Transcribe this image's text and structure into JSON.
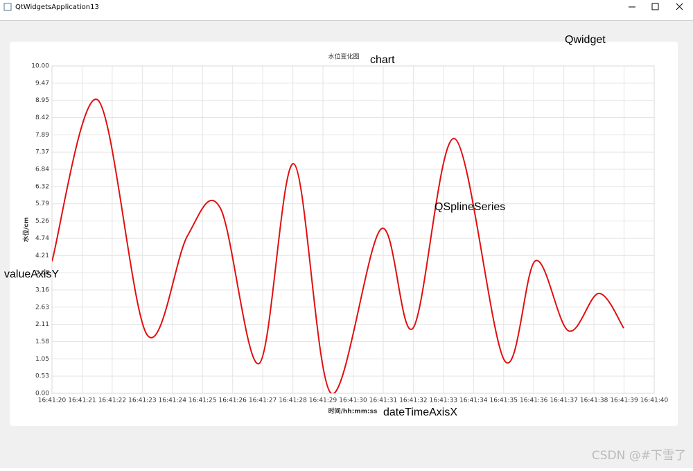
{
  "window": {
    "title": "QtWidgetsApplication13"
  },
  "annotations": [
    "Qwidget",
    "chart",
    "QSplineSeries",
    "valueAxisY",
    "dateTimeAxisX"
  ],
  "watermark": "CSDN @#下雪了",
  "chart_data": {
    "type": "spline",
    "title": "水位变化图",
    "x_label": "时间/hh:mm:ss",
    "y_label": "水位/cm",
    "x": [
      "16:41:20.00",
      "16:41:21.52",
      "16:41:23.15",
      "16:41:24.50",
      "16:41:25.59",
      "16:41:26.88",
      "16:41:28.03",
      "16:41:29.27",
      "16:41:30.93",
      "16:41:31.99",
      "16:41:33.37",
      "16:41:35.03",
      "16:41:36.06",
      "16:41:37.15",
      "16:41:38.16",
      "16:41:38.99"
    ],
    "series": [
      {
        "name": "QSplineSeries",
        "color": "#e01010",
        "values": [
          4.03,
          8.96,
          1.8,
          4.81,
          5.66,
          0.91,
          7.01,
          0.0,
          5.02,
          1.99,
          7.78,
          1.0,
          4.05,
          1.91,
          3.05,
          1.99
        ]
      }
    ],
    "xlim": [
      "16:41:20",
      "16:41:40"
    ],
    "xticks": [
      "16:41:20",
      "16:41:21",
      "16:41:22",
      "16:41:23",
      "16:41:24",
      "16:41:25",
      "16:41:26",
      "16:41:27",
      "16:41:28",
      "16:41:29",
      "16:41:30",
      "16:41:31",
      "16:41:32",
      "16:41:33",
      "16:41:34",
      "16:41:35",
      "16:41:36",
      "16:41:37",
      "16:41:38",
      "16:41:39",
      "16:41:40"
    ],
    "ylim": [
      0,
      10
    ],
    "yticks": [
      {
        "value": 0,
        "label": "0.00"
      },
      {
        "value": 0.5263,
        "label": "0.53"
      },
      {
        "value": 1.0526,
        "label": "1.05"
      },
      {
        "value": 1.5789,
        "label": "1.58"
      },
      {
        "value": 2.1053,
        "label": "2.11"
      },
      {
        "value": 2.6316,
        "label": "2.63"
      },
      {
        "value": 3.1579,
        "label": "3.16"
      },
      {
        "value": 3.6842,
        "label": "3.68"
      },
      {
        "value": 4.2105,
        "label": "4.21"
      },
      {
        "value": 4.7368,
        "label": "4.74"
      },
      {
        "value": 5.2632,
        "label": "5.26"
      },
      {
        "value": 5.7895,
        "label": "5.79"
      },
      {
        "value": 6.3158,
        "label": "6.32"
      },
      {
        "value": 6.8421,
        "label": "6.84"
      },
      {
        "value": 7.3684,
        "label": "7.37"
      },
      {
        "value": 7.8947,
        "label": "7.89"
      },
      {
        "value": 8.4211,
        "label": "8.42"
      },
      {
        "value": 8.9474,
        "label": "8.95"
      },
      {
        "value": 9.4737,
        "label": "9.47"
      },
      {
        "value": 10,
        "label": "10.00"
      }
    ],
    "grid": true
  }
}
